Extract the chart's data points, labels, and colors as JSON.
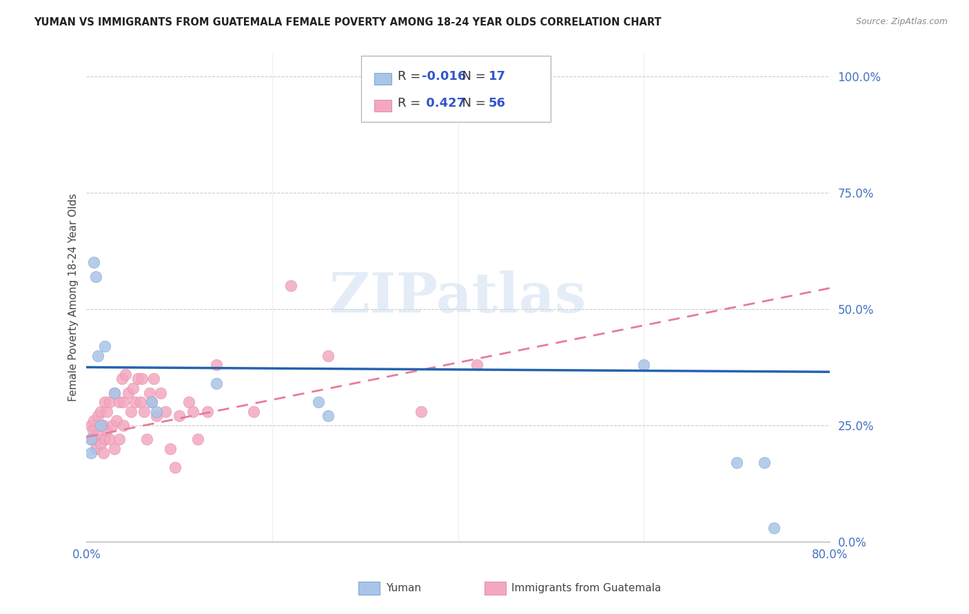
{
  "title": "YUMAN VS IMMIGRANTS FROM GUATEMALA FEMALE POVERTY AMONG 18-24 YEAR OLDS CORRELATION CHART",
  "source": "Source: ZipAtlas.com",
  "ylabel": "Female Poverty Among 18-24 Year Olds",
  "yuman_label": "Yuman",
  "guatemala_label": "Immigrants from Guatemala",
  "R_yuman": -0.016,
  "N_yuman": 17,
  "R_guatemala": 0.427,
  "N_guatemala": 56,
  "xlim": [
    0.0,
    0.8
  ],
  "ylim": [
    0.0,
    1.05
  ],
  "yticks": [
    0.0,
    0.25,
    0.5,
    0.75,
    1.0
  ],
  "ytick_labels": [
    "0.0%",
    "25.0%",
    "50.0%",
    "75.0%",
    "100.0%"
  ],
  "xticks": [
    0.0,
    0.2,
    0.4,
    0.6,
    0.8
  ],
  "xtick_labels": [
    "0.0%",
    "",
    "",
    "",
    "80.0%"
  ],
  "color_yuman": "#aac4e8",
  "color_guatemala": "#f4a8c0",
  "line_color_yuman": "#2563b0",
  "line_color_guatemala": "#e87a9a",
  "yuman_x": [
    0.005,
    0.005,
    0.008,
    0.01,
    0.012,
    0.015,
    0.02,
    0.03,
    0.07,
    0.075,
    0.14,
    0.25,
    0.26,
    0.6,
    0.7,
    0.73,
    0.74
  ],
  "yuman_y": [
    0.19,
    0.22,
    0.6,
    0.57,
    0.4,
    0.25,
    0.42,
    0.32,
    0.3,
    0.28,
    0.34,
    0.3,
    0.27,
    0.38,
    0.17,
    0.17,
    0.03
  ],
  "guatemala_x": [
    0.005,
    0.005,
    0.007,
    0.008,
    0.01,
    0.01,
    0.012,
    0.012,
    0.015,
    0.015,
    0.018,
    0.018,
    0.02,
    0.02,
    0.022,
    0.022,
    0.025,
    0.025,
    0.028,
    0.03,
    0.03,
    0.032,
    0.035,
    0.035,
    0.038,
    0.04,
    0.04,
    0.042,
    0.045,
    0.048,
    0.05,
    0.052,
    0.055,
    0.058,
    0.06,
    0.062,
    0.065,
    0.068,
    0.07,
    0.072,
    0.075,
    0.08,
    0.085,
    0.09,
    0.095,
    0.1,
    0.11,
    0.115,
    0.12,
    0.13,
    0.14,
    0.18,
    0.22,
    0.26,
    0.36,
    0.42
  ],
  "guatemala_y": [
    0.22,
    0.25,
    0.24,
    0.26,
    0.2,
    0.22,
    0.23,
    0.27,
    0.21,
    0.28,
    0.19,
    0.25,
    0.22,
    0.3,
    0.24,
    0.28,
    0.22,
    0.3,
    0.25,
    0.2,
    0.32,
    0.26,
    0.3,
    0.22,
    0.35,
    0.3,
    0.25,
    0.36,
    0.32,
    0.28,
    0.33,
    0.3,
    0.35,
    0.3,
    0.35,
    0.28,
    0.22,
    0.32,
    0.3,
    0.35,
    0.27,
    0.32,
    0.28,
    0.2,
    0.16,
    0.27,
    0.3,
    0.28,
    0.22,
    0.28,
    0.38,
    0.28,
    0.55,
    0.4,
    0.28,
    0.38
  ],
  "yuman_trend_x": [
    0.0,
    0.8
  ],
  "yuman_trend_y": [
    0.375,
    0.365
  ],
  "guatemala_trend_x": [
    0.0,
    0.8
  ],
  "guatemala_trend_y": [
    0.225,
    0.545
  ],
  "watermark": "ZIPatlas",
  "background_color": "#ffffff",
  "grid_color": "#cccccc"
}
